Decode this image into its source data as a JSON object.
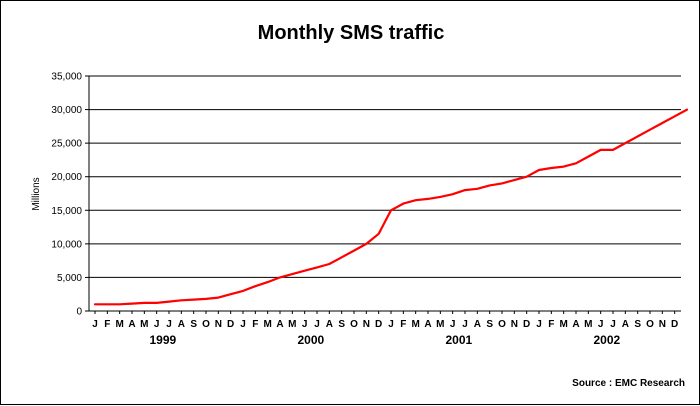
{
  "chart_data": {
    "type": "line",
    "title": "Monthly SMS traffic",
    "ylabel": "Millions",
    "xlabel": "",
    "ylim": [
      0,
      35000
    ],
    "yticks": [
      0,
      5000,
      10000,
      15000,
      20000,
      25000,
      30000,
      35000
    ],
    "ytick_labels": [
      "0",
      "5,000",
      "10,000",
      "15,000",
      "20,000",
      "25,000",
      "30,000",
      "35,000"
    ],
    "grid": true,
    "source": "Source : EMC Research",
    "month_letters": [
      "J",
      "F",
      "M",
      "A",
      "M",
      "J",
      "J",
      "A",
      "S",
      "O",
      "N",
      "D"
    ],
    "years": [
      "1999",
      "2000",
      "2001",
      "2002"
    ],
    "line_color": "#ff0000",
    "series": [
      {
        "values": [
          1000,
          1000,
          1000,
          1100,
          1200,
          1200,
          1400,
          1600,
          1700,
          1800,
          2000,
          2500,
          3000,
          3700,
          4300,
          5000,
          5500,
          6000,
          6500,
          7000,
          8000,
          9000,
          10000,
          11500,
          15000,
          16000,
          16500,
          16700,
          17000,
          17400,
          18000,
          18200,
          18700,
          19000,
          19500,
          20000,
          21000,
          21300,
          21500,
          22000,
          23000,
          24000,
          24000,
          25000,
          26000,
          27000,
          28000,
          29000,
          30000
        ]
      }
    ]
  }
}
